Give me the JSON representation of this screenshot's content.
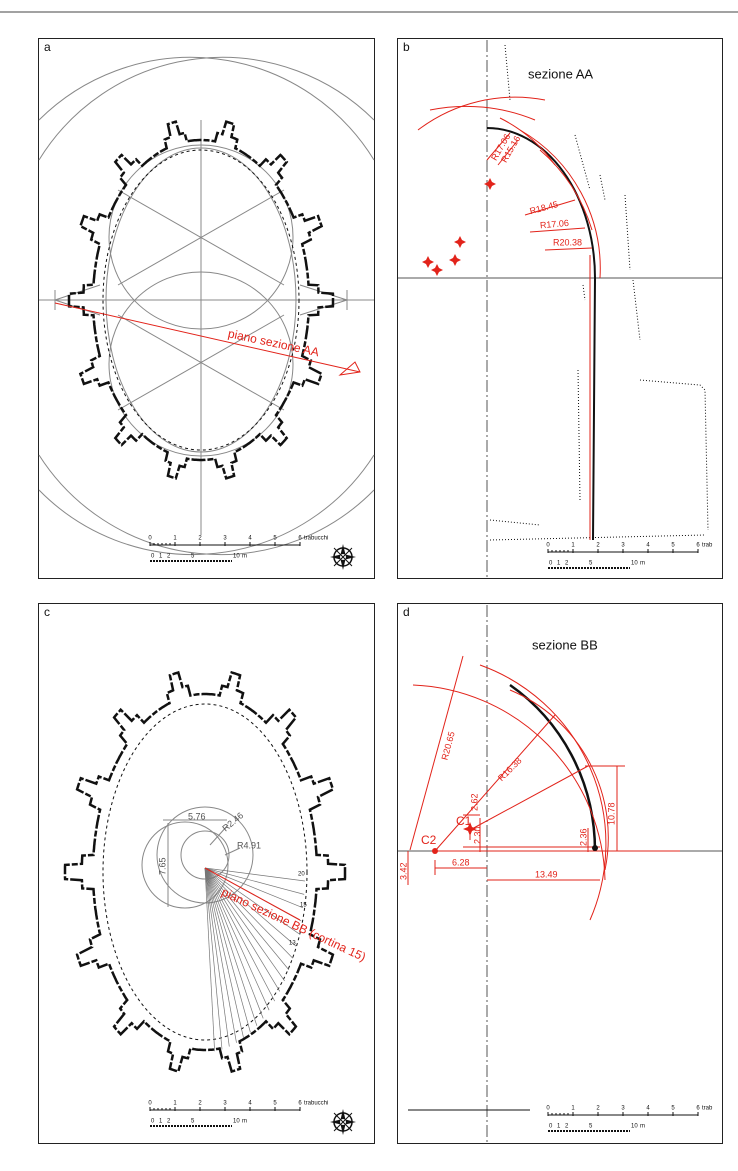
{
  "panels": [
    {
      "label": "a",
      "section_label": "piano sezione AA",
      "scale_trabucchi": {
        "ticks": [
          "0",
          "1",
          "2",
          "3",
          "4",
          "5",
          "6"
        ],
        "unit": "trabucchi"
      },
      "scale_metri": {
        "ticks": [
          "0",
          "1",
          "2",
          "5",
          "10"
        ],
        "unit": "m"
      }
    },
    {
      "label": "b",
      "title": "sezione AA",
      "radii": [
        "R17.06",
        "R15.16",
        "R18.45",
        "R17.06",
        "R20.38"
      ],
      "scale_trabucchi": {
        "ticks": [
          "0",
          "1",
          "2",
          "3",
          "4",
          "5",
          "6"
        ],
        "unit": "trab"
      },
      "scale_metri": {
        "ticks": [
          "0",
          "1",
          "2",
          "5",
          "10"
        ],
        "unit": "m"
      }
    },
    {
      "label": "c",
      "dimensions": [
        "5.76",
        "R2.46",
        "R4.91",
        "7.65"
      ],
      "point_numbers": [
        "20",
        "15",
        "13"
      ],
      "section_label": "piano sezione BB (cortina 15)",
      "scale_trabucchi": {
        "ticks": [
          "0",
          "1",
          "2",
          "3",
          "4",
          "5",
          "6"
        ],
        "unit": "trabucchi"
      },
      "scale_metri": {
        "ticks": [
          "0",
          "1",
          "2",
          "5",
          "10"
        ],
        "unit": "m"
      }
    },
    {
      "label": "d",
      "title": "sezione BB",
      "radii": [
        "R20.65",
        "R16.38"
      ],
      "centers": [
        "C1",
        "C2"
      ],
      "dimensions": [
        "2.62",
        "2.30",
        "2.36",
        "10.78",
        "3.42",
        "6.28",
        "13.49"
      ],
      "scale_trabucchi": {
        "ticks": [
          "0",
          "1",
          "2",
          "3",
          "4",
          "5",
          "6"
        ],
        "unit": "trab"
      },
      "scale_metri": {
        "ticks": [
          "0",
          "1",
          "2",
          "5",
          "10"
        ],
        "unit": "m"
      }
    }
  ]
}
